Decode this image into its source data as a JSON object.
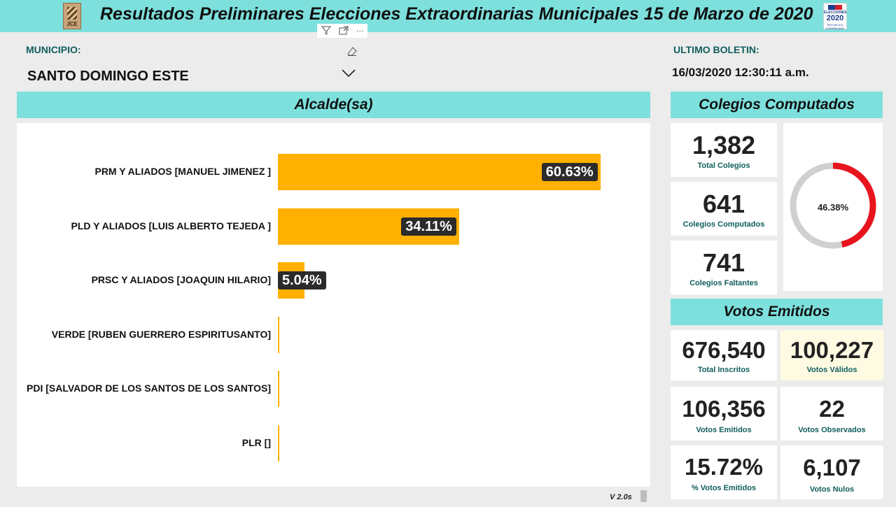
{
  "header": {
    "title": "Resultados Preliminares Elecciones Extraordinarias Municipales 15 de Marzo de 2020",
    "logo_left_text": "JCE",
    "logo_right_text_small": "ELECCIONES",
    "logo_right_year": "2020",
    "logo_right_text_bottom": "REPUBLICA DOMINICANA"
  },
  "visual_header": {
    "filter_icon": "filter-icon",
    "focus_icon": "focus-mode-icon",
    "more_icon": "more-options-icon",
    "more_glyph": "···"
  },
  "municipio": {
    "label": "MUNICIPIO:",
    "value": "SANTO DOMINGO ESTE"
  },
  "boletin": {
    "label": "ULTIMO BOLETIN:",
    "value": "16/03/2020 12:30:11 a.m."
  },
  "alcalde": {
    "title": "Alcalde(sa)"
  },
  "chart_data": {
    "type": "bar",
    "orientation": "horizontal",
    "categories": [
      "PRM Y ALIADOS [MANUEL JIMENEZ ]",
      "PLD Y ALIADOS [LUIS ALBERTO TEJEDA ]",
      "PRSC Y ALIADOS [JOAQUIN HILARIO]",
      "VERDE [RUBEN GUERRERO ESPIRITUSANTO]",
      "PDI [SALVADOR DE LOS SANTOS DE LOS SANTOS]",
      "PLR []"
    ],
    "values": [
      60.63,
      34.11,
      5.04,
      0,
      0,
      0
    ],
    "data_labels": [
      "60.63%",
      "34.11%",
      "5.04%",
      "",
      "",
      ""
    ],
    "xlim": [
      0,
      100
    ],
    "color": "#ffb000",
    "grid": false
  },
  "version": "V 2.0s",
  "colegios": {
    "title": "Colegios Computados",
    "cards": [
      {
        "value": "1,382",
        "label": "Total Colegios"
      },
      {
        "value": "641",
        "label": "Colegios Computados"
      },
      {
        "value": "741",
        "label": "Colegios Faltantes"
      }
    ],
    "donut": {
      "label": "46.38%",
      "fraction": 0.4638,
      "fill_color": "#e8141d",
      "track_color": "#d0d0d0"
    }
  },
  "votos": {
    "title": "Votos Emitidos",
    "cards": [
      {
        "value": "676,540",
        "label": "Total Inscritos"
      },
      {
        "value": "100,227",
        "label": "Votos Válidos"
      },
      {
        "value": "106,356",
        "label": "Votos Emitidos"
      },
      {
        "value": "22",
        "label": "Votos Observados"
      },
      {
        "value": "15.72%",
        "label": "% Votos Emitidos"
      },
      {
        "value": "6,107",
        "label": "Votos Nulos"
      }
    ]
  }
}
